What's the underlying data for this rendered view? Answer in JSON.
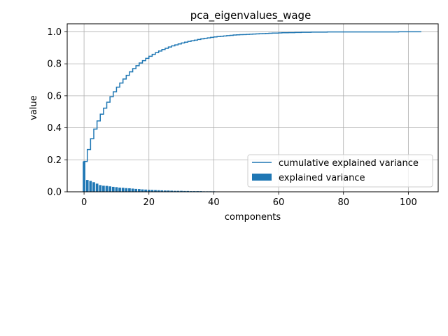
{
  "chart_data": {
    "type": "bar",
    "title": "pca_eigenvalues_wage",
    "xlabel": "components",
    "ylabel": "value",
    "xlim": [
      -5.2,
      109.2
    ],
    "ylim": [
      0,
      1.05
    ],
    "xticks": [
      0,
      20,
      40,
      60,
      80,
      100
    ],
    "yticks": [
      0.0,
      0.2,
      0.4,
      0.6,
      0.8,
      1.0
    ],
    "xtick_labels": [
      "0",
      "20",
      "40",
      "60",
      "80",
      "100"
    ],
    "ytick_labels": [
      "0.0",
      "0.2",
      "0.4",
      "0.6",
      "0.8",
      "1.0"
    ],
    "grid": true,
    "legend_position": "center-right",
    "series": [
      {
        "name": "cumulative explained variance",
        "kind": "step",
        "color": "#1f77b4",
        "x": [
          0,
          1,
          2,
          3,
          4,
          5,
          6,
          7,
          8,
          9,
          10,
          11,
          12,
          13,
          14,
          15,
          16,
          17,
          18,
          19,
          20,
          21,
          22,
          23,
          24,
          25,
          26,
          27,
          28,
          29,
          30,
          31,
          32,
          33,
          34,
          35,
          36,
          37,
          38,
          39,
          40,
          41,
          42,
          43,
          44,
          45,
          46,
          47,
          48,
          49,
          50,
          51,
          52,
          53,
          54,
          55,
          56,
          57,
          58,
          59,
          60,
          61,
          62,
          63,
          64,
          65,
          66,
          67,
          68,
          69,
          70,
          71,
          72,
          73,
          74,
          75,
          76,
          77,
          78,
          79,
          80,
          81,
          82,
          83,
          84,
          85,
          86,
          87,
          88,
          89,
          90,
          91,
          92,
          93,
          94,
          95,
          96,
          97,
          98,
          99,
          100,
          101,
          102,
          103,
          104
        ],
        "values": [
          0.19,
          0.264,
          0.332,
          0.392,
          0.443,
          0.485,
          0.523,
          0.56,
          0.594,
          0.625,
          0.654,
          0.68,
          0.705,
          0.728,
          0.75,
          0.77,
          0.788,
          0.805,
          0.82,
          0.834,
          0.847,
          0.859,
          0.87,
          0.88,
          0.889,
          0.897,
          0.905,
          0.912,
          0.918,
          0.924,
          0.93,
          0.935,
          0.94,
          0.944,
          0.948,
          0.952,
          0.956,
          0.959,
          0.962,
          0.965,
          0.968,
          0.97,
          0.972,
          0.974,
          0.976,
          0.978,
          0.98,
          0.981,
          0.982,
          0.983,
          0.984,
          0.985,
          0.986,
          0.987,
          0.988,
          0.989,
          0.99,
          0.991,
          0.992,
          0.992,
          0.993,
          0.994,
          0.994,
          0.995,
          0.995,
          0.996,
          0.996,
          0.997,
          0.997,
          0.997,
          0.998,
          0.998,
          0.998,
          0.998,
          0.998,
          0.999,
          0.999,
          0.999,
          0.999,
          0.999,
          0.999,
          0.999,
          0.999,
          0.999,
          0.999,
          0.999,
          0.999,
          0.999,
          0.999,
          0.999,
          0.999,
          0.999,
          0.999,
          0.999,
          0.999,
          0.999,
          0.999,
          1.0,
          1.0,
          1.0,
          1.0,
          1.0,
          1.0,
          1.0,
          1.0
        ]
      },
      {
        "name": "explained variance",
        "kind": "bar",
        "color": "#1f77b4",
        "x": [
          0,
          1,
          2,
          3,
          4,
          5,
          6,
          7,
          8,
          9,
          10,
          11,
          12,
          13,
          14,
          15,
          16,
          17,
          18,
          19,
          20,
          21,
          22,
          23,
          24,
          25,
          26,
          27,
          28,
          29,
          30,
          31,
          32,
          33,
          34,
          35,
          36,
          37,
          38,
          39,
          40,
          41,
          42,
          43,
          44,
          45,
          46,
          47,
          48,
          49,
          50,
          51,
          52,
          53,
          54,
          55,
          56,
          57,
          58,
          59,
          60,
          61,
          62
        ],
        "values": [
          0.19,
          0.074,
          0.068,
          0.06,
          0.051,
          0.042,
          0.038,
          0.037,
          0.034,
          0.031,
          0.029,
          0.026,
          0.025,
          0.023,
          0.022,
          0.02,
          0.018,
          0.017,
          0.015,
          0.014,
          0.013,
          0.012,
          0.011,
          0.01,
          0.009,
          0.008,
          0.008,
          0.007,
          0.006,
          0.006,
          0.006,
          0.005,
          0.005,
          0.004,
          0.004,
          0.004,
          0.004,
          0.003,
          0.003,
          0.003,
          0.003,
          0.002,
          0.002,
          0.002,
          0.002,
          0.002,
          0.002,
          0.001,
          0.001,
          0.001,
          0.001,
          0.001,
          0.001,
          0.001,
          0.001,
          0.001,
          0.001,
          0.001,
          0.001,
          0.001,
          0.001,
          0.001,
          0.001
        ]
      }
    ]
  }
}
